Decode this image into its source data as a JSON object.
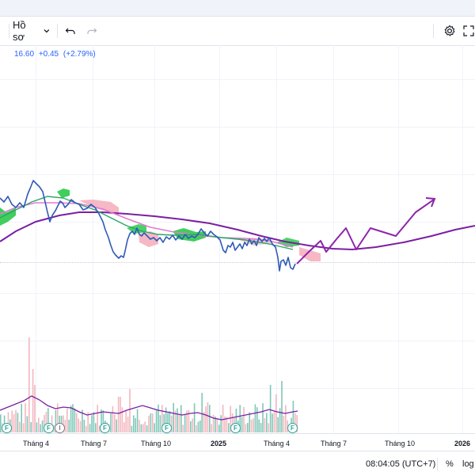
{
  "toolbar": {
    "profile_label": "Hồ sơ",
    "profile_chevron_icon": "chevron-down-icon",
    "undo_icon": "undo-icon",
    "redo_icon": "redo-icon",
    "settings_icon": "gear-icon",
    "fullscreen_icon": "fullscreen-icon"
  },
  "legend": {
    "price": "16.60",
    "change": "+0.45",
    "change_pct": "(+2.79%)"
  },
  "time_axis": {
    "labels": [
      "Tháng 4",
      "Tháng 7",
      "Tháng 10",
      "2025",
      "Tháng 4",
      "Tháng 7",
      "Tháng 10",
      "2026"
    ],
    "event_markers": [
      "F",
      "F",
      "I",
      "F",
      "F",
      "F",
      "F"
    ]
  },
  "footer": {
    "time": "08:04:05 (UTC+7)",
    "percent": "%",
    "log": "log"
  },
  "colors": {
    "price_line": "#2e5ab8",
    "ma_purple": "#7b1fa2",
    "ma_pink": "#e27bd0",
    "ma_green": "#2aa56b",
    "cloud_green": "#1ec641",
    "cloud_pink": "#f4a6b5",
    "forecast": "#8e24aa",
    "vol_green": "#7ec8b8",
    "vol_red": "#f2b8bf",
    "legend_blue": "#2962ff"
  }
}
